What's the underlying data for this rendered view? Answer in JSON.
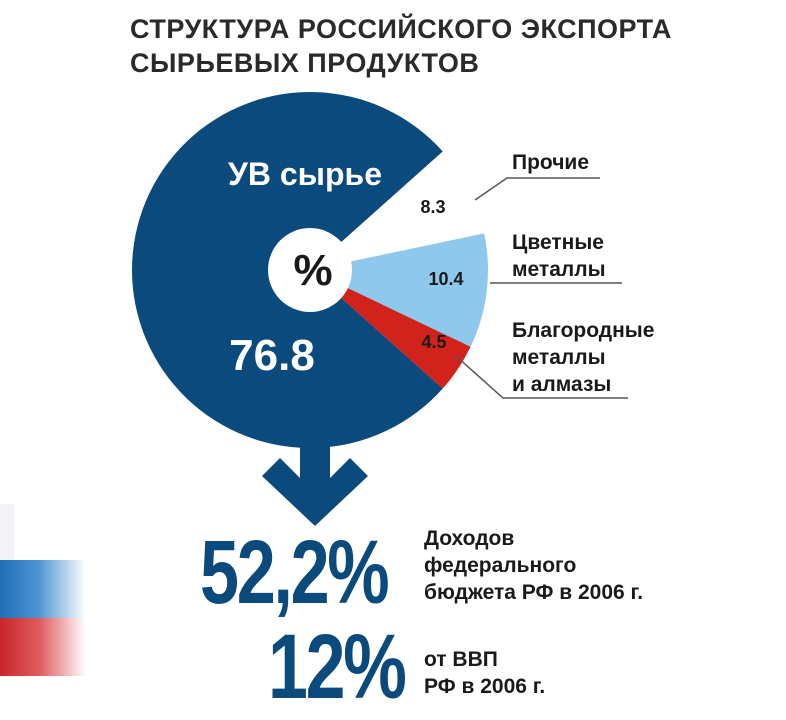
{
  "title": {
    "line1": "СТРУКТУРА РОССИЙСКОГО ЭКСПОРТА",
    "line2": "СЫРЬЕВЫХ ПРОДУКТОВ"
  },
  "chart_data": {
    "type": "pie",
    "center_label": "%",
    "slices": [
      {
        "label": "УВ сырье",
        "value": 76.8,
        "value_text": "76.8",
        "color": "#0b4a7c"
      },
      {
        "label_lines": [
          "Прочие"
        ],
        "value": 8.3,
        "value_text": "8.3",
        "color": "#ffffff"
      },
      {
        "label_lines": [
          "Цветные",
          "металлы"
        ],
        "value": 10.4,
        "value_text": "10.4",
        "color": "#8ec8ec"
      },
      {
        "label_lines": [
          "Благородные",
          "металлы",
          "и алмазы"
        ],
        "value": 4.5,
        "value_text": "4.5",
        "color": "#d1231c"
      }
    ]
  },
  "stats": [
    {
      "value": "52,2%",
      "caption_lines": [
        "Доходов",
        "федерального",
        "бюджета РФ в 2006 г."
      ]
    },
    {
      "value": "12%",
      "caption_lines": [
        "от ВВП",
        "РФ в 2006 г."
      ]
    }
  ],
  "colors": {
    "accent": "#0b4a7c",
    "flag_white": "#ffffff",
    "flag_blue": "#1f6fb8",
    "flag_red": "#c8262b"
  },
  "icons": {
    "arrow": "down-arrow-icon"
  }
}
